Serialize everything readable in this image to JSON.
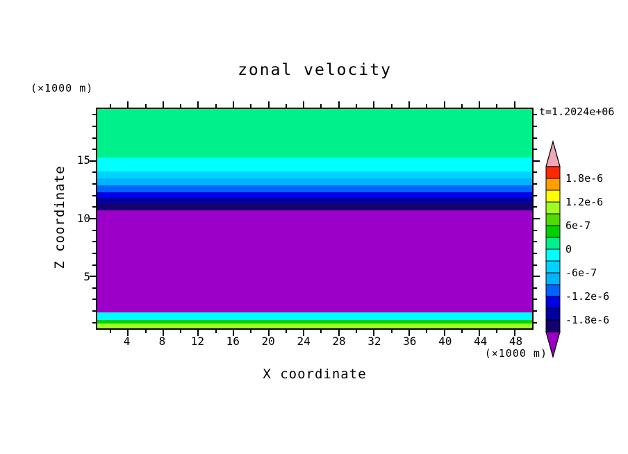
{
  "title": "zonal velocity",
  "time_label": "t=1.2024e+06",
  "chart_data": {
    "type": "heatmap",
    "title": "zonal velocity",
    "subtitle": "",
    "time_label": "t=1.2024e+06",
    "xlabel": "X coordinate",
    "ylabel": "Z coordinate",
    "x_axis": {
      "title": "X coordinate",
      "unit": "(×1000 m)",
      "min": 0.5,
      "max": 50,
      "tick_start": 2,
      "tick_end": 48,
      "tick_step": 2,
      "label_step": 4,
      "tick_labels": [
        4,
        8,
        12,
        16,
        20,
        24,
        28,
        32,
        36,
        40,
        44,
        48
      ]
    },
    "y_axis": {
      "title": "Z coordinate",
      "unit": "(×1000 m)",
      "min": 0.5,
      "max": 19.5,
      "tick_start": 1,
      "tick_end": 19,
      "tick_step": 1,
      "label_step": 5,
      "tick_labels": [
        5,
        10,
        15
      ]
    },
    "contour_level_step": 3e-07,
    "contour_level_range": [
      -2.1e-06,
      2.1e-06
    ],
    "bands": [
      {
        "z_from": 15.3,
        "z_to": 19.5,
        "color": "#00f08c",
        "value": "0 to 3e-7"
      },
      {
        "z_from": 14.1,
        "z_to": 15.3,
        "color": "#00ffff",
        "value": "-3e-7 to 0"
      },
      {
        "z_from": 13.5,
        "z_to": 14.1,
        "color": "#00d2ff",
        "value": "-6e-7 to -3e-7"
      },
      {
        "z_from": 12.9,
        "z_to": 13.5,
        "color": "#00b4ff",
        "value": "-9e-7 to -6e-7"
      },
      {
        "z_from": 12.3,
        "z_to": 12.9,
        "color": "#0064ff",
        "value": "-1.2e-6 to -9e-7"
      },
      {
        "z_from": 11.8,
        "z_to": 12.3,
        "color": "#0000e6",
        "value": "-1.5e-6 to -1.2e-6"
      },
      {
        "z_from": 11.3,
        "z_to": 11.8,
        "color": "#0000a0",
        "value": "-1.8e-6 to -1.5e-6"
      },
      {
        "z_from": 10.7,
        "z_to": 11.3,
        "color": "#14006e",
        "value": "-2.1e-6 to -1.8e-6"
      },
      {
        "z_from": 1.9,
        "z_to": 10.7,
        "color": "#9c00c8",
        "value": "below -2.1e-6"
      },
      {
        "z_from": 1.2,
        "z_to": 1.9,
        "color": "#00ffff",
        "value": "-3e-7 to 0"
      },
      {
        "z_from": 0.95,
        "z_to": 1.2,
        "color": "#00d200",
        "value": "3e-7 to 6e-7"
      },
      {
        "z_from": 0.5,
        "z_to": 0.95,
        "color": "#a0ff1e",
        "value": "9e-7 to 1.2e-6"
      }
    ],
    "colorbar": {
      "segments": [
        {
          "from": -2.1e-06,
          "to": -1.8e-06,
          "color": "#14006e"
        },
        {
          "from": -1.8e-06,
          "to": -1.5e-06,
          "color": "#0000a0"
        },
        {
          "from": -1.5e-06,
          "to": -1.2e-06,
          "color": "#0000e6"
        },
        {
          "from": -1.2e-06,
          "to": -9e-07,
          "color": "#0064ff"
        },
        {
          "from": -9e-07,
          "to": -6e-07,
          "color": "#00b4ff"
        },
        {
          "from": -6e-07,
          "to": -3e-07,
          "color": "#00d2ff"
        },
        {
          "from": -3e-07,
          "to": 0,
          "color": "#00ffff"
        },
        {
          "from": 0,
          "to": 3e-07,
          "color": "#00f08c"
        },
        {
          "from": 3e-07,
          "to": 6e-07,
          "color": "#00d200"
        },
        {
          "from": 6e-07,
          "to": 9e-07,
          "color": "#50dc00"
        },
        {
          "from": 9e-07,
          "to": 1.2e-06,
          "color": "#a0ff1e"
        },
        {
          "from": 1.2e-06,
          "to": 1.5e-06,
          "color": "#ffff00"
        },
        {
          "from": 1.5e-06,
          "to": 1.8e-06,
          "color": "#ffa000"
        },
        {
          "from": 1.8e-06,
          "to": 2.1e-06,
          "color": "#ff2800"
        }
      ],
      "arrow_top_color": "#efa8b8",
      "arrow_bottom_color": "#9c00c8",
      "labels": [
        "1.8e-6",
        "1.2e-6",
        "6e-7",
        "0",
        "-6e-7",
        "-1.2e-6",
        "-1.8e-6"
      ]
    }
  }
}
